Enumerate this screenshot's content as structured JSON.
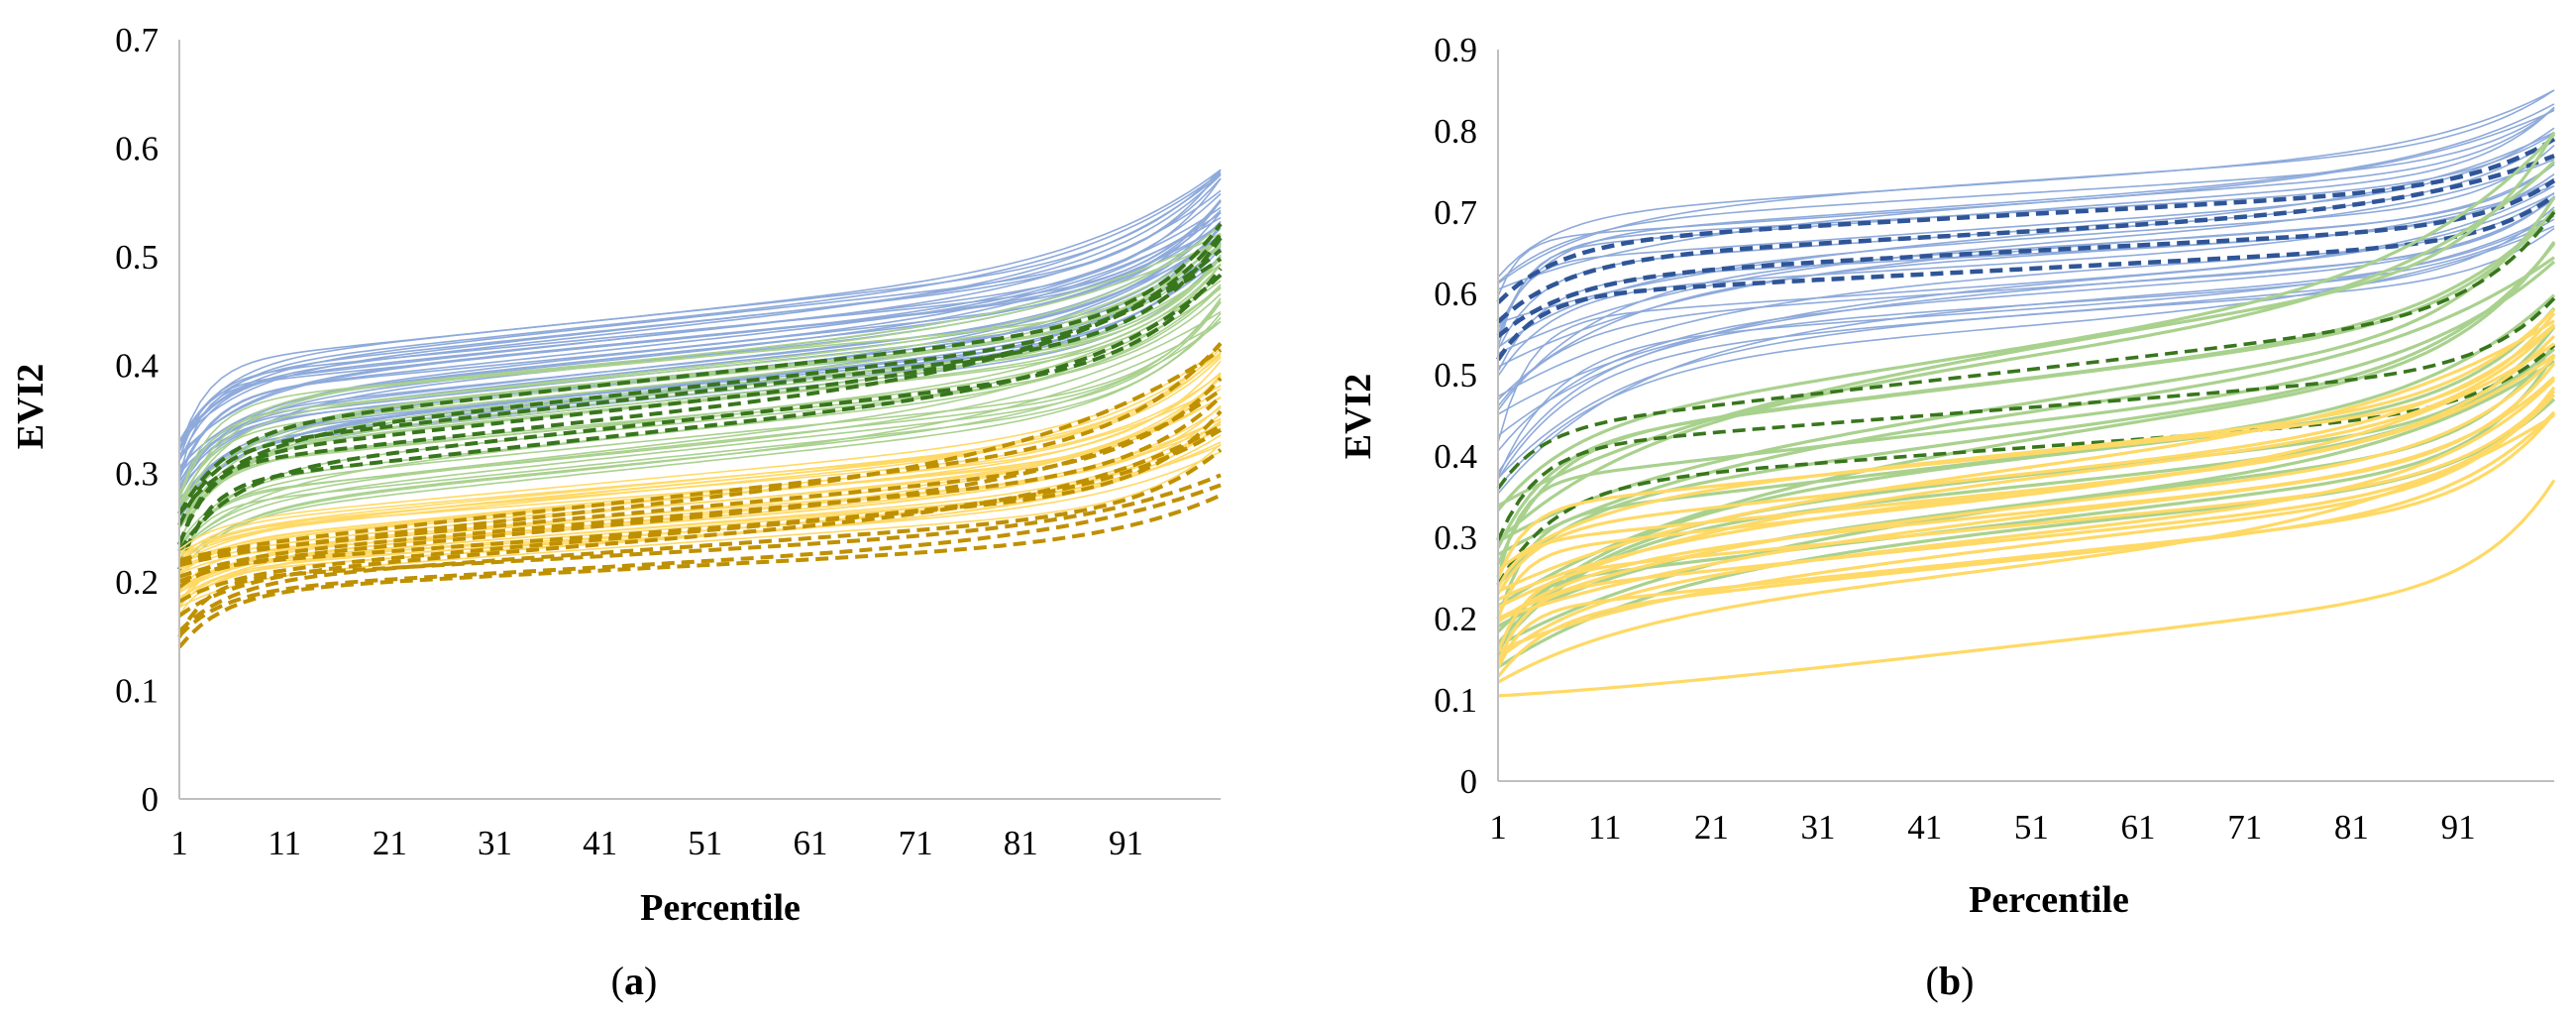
{
  "chart_data": [
    {
      "type": "line",
      "panel_label": "a",
      "caption_open": "(",
      "caption_close": ")",
      "xlabel": "Percentile",
      "ylabel": "EVI2",
      "x_ticks": [
        "1",
        "11",
        "21",
        "31",
        "41",
        "51",
        "61",
        "71",
        "81",
        "91"
      ],
      "x_range": [
        1,
        100
      ],
      "y_ticks": [
        "0",
        "0.1",
        "0.2",
        "0.3",
        "0.4",
        "0.5",
        "0.6",
        "0.7"
      ],
      "ylim": [
        0,
        0.7
      ],
      "grid": false,
      "groups": [
        {
          "name": "blue solid (thin)",
          "color": "#8eaadb",
          "dash": false,
          "width": 1.6,
          "count": 36,
          "start": [
            0.26,
            0.33
          ],
          "mid": [
            0.36,
            0.44
          ],
          "end": [
            0.5,
            0.58
          ]
        },
        {
          "name": "green solid (thin)",
          "color": "#a9d18e",
          "dash": false,
          "width": 1.6,
          "count": 30,
          "start": [
            0.21,
            0.28
          ],
          "mid": [
            0.3,
            0.4
          ],
          "end": [
            0.44,
            0.53
          ]
        },
        {
          "name": "dark green dashed",
          "color": "#38761d",
          "dash": true,
          "width": 4,
          "count": 7,
          "start": [
            0.21,
            0.27
          ],
          "mid": [
            0.33,
            0.38
          ],
          "end": [
            0.48,
            0.53
          ]
        },
        {
          "name": "yellow solid (thin)",
          "color": "#ffd966",
          "dash": false,
          "width": 1.6,
          "count": 30,
          "start": [
            0.17,
            0.23
          ],
          "mid": [
            0.23,
            0.29
          ],
          "end": [
            0.32,
            0.42
          ]
        },
        {
          "name": "dark yellow dashed",
          "color": "#bf9000",
          "dash": true,
          "width": 4,
          "count": 12,
          "start": [
            0.14,
            0.22
          ],
          "mid": [
            0.21,
            0.27
          ],
          "end": [
            0.28,
            0.42
          ]
        }
      ]
    },
    {
      "type": "line",
      "panel_label": "b",
      "caption_open": "(",
      "caption_close": ")",
      "xlabel": "Percentile",
      "ylabel": "EVI2",
      "x_ticks": [
        "1",
        "11",
        "21",
        "31",
        "41",
        "51",
        "61",
        "71",
        "81",
        "91"
      ],
      "x_range": [
        1,
        100
      ],
      "y_ticks": [
        "0",
        "0.1",
        "0.2",
        "0.3",
        "0.4",
        "0.5",
        "0.6",
        "0.7",
        "0.8",
        "0.9"
      ],
      "ylim": [
        0,
        0.9
      ],
      "grid": false,
      "groups": [
        {
          "name": "blue solid (thin)",
          "color": "#8eaadb",
          "dash": false,
          "width": 1.6,
          "count": 30,
          "start": [
            0.35,
            0.62
          ],
          "mid": [
            0.55,
            0.73
          ],
          "end": [
            0.68,
            0.85
          ]
        },
        {
          "name": "dark blue dashed",
          "color": "#2f5597",
          "dash": true,
          "width": 4.5,
          "count": 4,
          "start": [
            0.51,
            0.59
          ],
          "mid": [
            0.62,
            0.69
          ],
          "end": [
            0.72,
            0.79
          ]
        },
        {
          "name": "green solid",
          "color": "#a9d18e",
          "dash": false,
          "width": 3.2,
          "count": 18,
          "start": [
            0.14,
            0.34
          ],
          "mid": [
            0.3,
            0.52
          ],
          "end": [
            0.47,
            0.8
          ]
        },
        {
          "name": "dark green dashed",
          "color": "#38761d",
          "dash": true,
          "width": 3.6,
          "count": 3,
          "start": [
            0.23,
            0.36
          ],
          "mid": [
            0.4,
            0.49
          ],
          "end": [
            0.53,
            0.7
          ]
        },
        {
          "name": "yellow solid",
          "color": "#ffd966",
          "dash": false,
          "width": 3.2,
          "count": 18,
          "start": [
            0.12,
            0.27
          ],
          "mid": [
            0.25,
            0.39
          ],
          "end": [
            0.45,
            0.58
          ]
        },
        {
          "name": "yellow lowest curve",
          "color": "#ffd966",
          "dash": false,
          "width": 3.2,
          "count": 1,
          "start": [
            0.105,
            0.105
          ],
          "mid": [
            0.15,
            0.15
          ],
          "end": [
            0.37,
            0.37
          ]
        }
      ]
    }
  ]
}
